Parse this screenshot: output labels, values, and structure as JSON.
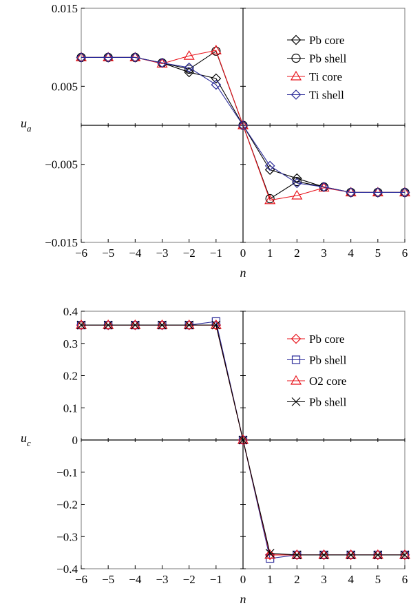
{
  "chart_data": [
    {
      "type": "line",
      "ylabel": "u",
      "ylabel_sub": "a",
      "xlabel": "n",
      "xlim": [
        -6,
        6
      ],
      "ylim": [
        -0.015,
        0.015
      ],
      "x_ticks": [
        -6,
        -5,
        -4,
        -3,
        -2,
        -1,
        0,
        1,
        2,
        3,
        4,
        5,
        6
      ],
      "x_tick_labels": [
        "−6",
        "−5",
        "−4",
        "−3",
        "−2",
        "−1",
        "0",
        "1",
        "2",
        "3",
        "4",
        "5",
        "6"
      ],
      "y_ticks": [
        -0.015,
        -0.005,
        0.005,
        0.015
      ],
      "y_tick_labels": [
        "−0.015",
        "−0.005",
        "0.005",
        "0.015"
      ],
      "grid": false,
      "legend_position": "top-right",
      "x": [
        -6,
        -5,
        -4,
        -3,
        -2,
        -1,
        0,
        1,
        2,
        3,
        4,
        5,
        6
      ],
      "series": [
        {
          "name": "Pb core",
          "color": "#000000",
          "marker": "diamond",
          "values": [
            0.0087,
            0.0087,
            0.0087,
            0.008,
            0.0068,
            0.006,
            0.0,
            -0.0057,
            -0.0068,
            -0.0079,
            -0.0086,
            -0.0086,
            -0.0086
          ]
        },
        {
          "name": "Pb shell",
          "color": "#000000",
          "marker": "circle",
          "values": [
            0.0087,
            0.0087,
            0.0087,
            0.008,
            0.0072,
            0.0095,
            0.0,
            -0.0094,
            -0.0072,
            -0.0079,
            -0.0086,
            -0.0086,
            -0.0086
          ]
        },
        {
          "name": "Ti core",
          "color": "#e8131b",
          "marker": "triangle",
          "values": [
            0.0087,
            0.0087,
            0.0087,
            0.0079,
            0.0089,
            0.0096,
            0.0,
            -0.0096,
            -0.009,
            -0.008,
            -0.0086,
            -0.0086,
            -0.0086
          ]
        },
        {
          "name": "Ti shell",
          "color": "#2b2b99",
          "marker": "diamond",
          "values": [
            0.0087,
            0.0087,
            0.0087,
            0.008,
            0.0074,
            0.0052,
            0.0,
            -0.0052,
            -0.0074,
            -0.0079,
            -0.0086,
            -0.0086,
            -0.0086
          ]
        }
      ]
    },
    {
      "type": "line",
      "ylabel": "u",
      "ylabel_sub": "c",
      "xlabel": "n",
      "xlim": [
        -6,
        6
      ],
      "ylim": [
        -0.4,
        0.4
      ],
      "x_ticks": [
        -6,
        -5,
        -4,
        -3,
        -2,
        -1,
        0,
        1,
        2,
        3,
        4,
        5,
        6
      ],
      "x_tick_labels": [
        "−6",
        "−5",
        "−4",
        "−3",
        "−2",
        "−1",
        "0",
        "1",
        "2",
        "3",
        "4",
        "5",
        "6"
      ],
      "y_ticks": [
        -0.4,
        -0.3,
        -0.2,
        -0.1,
        0,
        0.1,
        0.2,
        0.3,
        0.4
      ],
      "y_tick_labels": [
        "−0.4",
        "−0.3",
        "−0.2",
        "−0.1",
        "0",
        "0.1",
        "0.2",
        "0.3",
        "0.4"
      ],
      "grid": false,
      "legend_position": "top-right",
      "x": [
        -6,
        -5,
        -4,
        -3,
        -2,
        -1,
        0,
        1,
        2,
        3,
        4,
        5,
        6
      ],
      "series": [
        {
          "name": "Pb core",
          "color": "#e8131b",
          "marker": "diamond",
          "values": [
            0.357,
            0.357,
            0.357,
            0.357,
            0.357,
            0.357,
            0.0,
            -0.357,
            -0.357,
            -0.357,
            -0.357,
            -0.357,
            -0.357
          ]
        },
        {
          "name": "Pb shell",
          "color": "#2b2b99",
          "marker": "square",
          "values": [
            0.357,
            0.357,
            0.357,
            0.357,
            0.357,
            0.368,
            0.0,
            -0.368,
            -0.357,
            -0.357,
            -0.357,
            -0.357,
            -0.357
          ]
        },
        {
          "name": "O2 core",
          "color": "#e8131b",
          "marker": "triangle",
          "values": [
            0.357,
            0.357,
            0.357,
            0.357,
            0.357,
            0.357,
            0.0,
            -0.357,
            -0.357,
            -0.357,
            -0.357,
            -0.357,
            -0.357
          ]
        },
        {
          "name": "Pb shell",
          "color": "#000000",
          "marker": "x",
          "values": [
            0.357,
            0.357,
            0.357,
            0.357,
            0.357,
            0.357,
            0.0,
            -0.352,
            -0.357,
            -0.357,
            -0.357,
            -0.357,
            -0.357
          ]
        }
      ]
    }
  ]
}
